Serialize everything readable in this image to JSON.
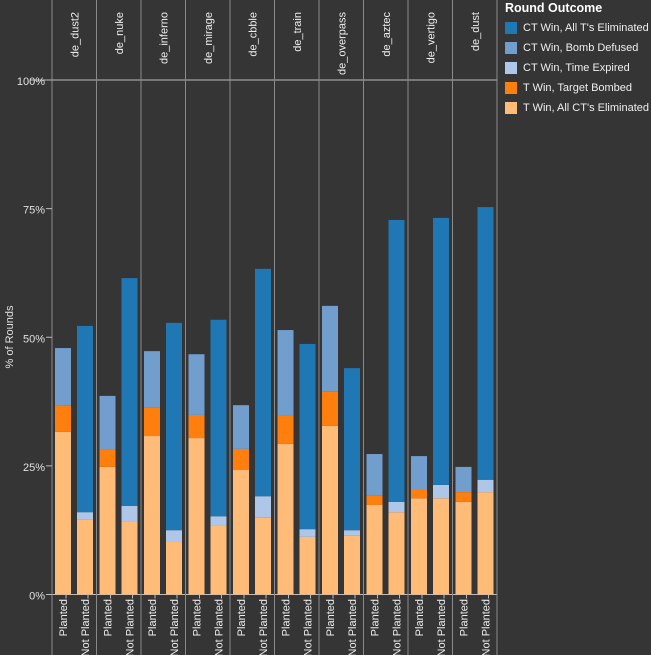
{
  "chart_data": {
    "type": "bar",
    "stacked": true,
    "ylabel": "% of Rounds",
    "ylim": [
      0,
      100
    ],
    "yticks": [
      "0%",
      "25%",
      "50%",
      "75%",
      "100%"
    ],
    "panels": [
      "de_dust2",
      "de_nuke",
      "de_inferno",
      "de_mirage",
      "de_cbble",
      "de_train",
      "de_overpass",
      "de_aztec",
      "de_vertigo",
      "de_dust"
    ],
    "subcategories": [
      "Planted",
      "Not Planted"
    ],
    "legend": {
      "title": "Round Outcome",
      "position": "right"
    },
    "series": [
      {
        "name": "CT Win, All T's Eliminated",
        "color": "#1f77b4",
        "values": [
          0,
          36.2,
          0,
          44.3,
          0,
          40.3,
          0,
          38.2,
          0,
          44.2,
          0,
          36.0,
          0,
          31.5,
          0,
          54.8,
          0,
          51.9,
          0,
          53.0
        ]
      },
      {
        "name": "CT Win, Bomb Defused",
        "color": "#729ece",
        "values": [
          11.2,
          0,
          10.5,
          0,
          10.9,
          0,
          11.8,
          0,
          8.5,
          0,
          16.7,
          0,
          16.7,
          0,
          8.0,
          0,
          6.4,
          0,
          4.9,
          0
        ]
      },
      {
        "name": "CT Win, Time Expired",
        "color": "#aec7e8",
        "values": [
          0,
          1.5,
          0,
          3.0,
          0,
          2.3,
          0,
          1.8,
          0,
          4.2,
          0,
          1.5,
          0,
          1.1,
          0,
          2.0,
          0,
          2.6,
          0,
          2.4
        ]
      },
      {
        "name": "T Win, Target Bombed",
        "color": "#ff7f0e",
        "values": [
          5.1,
          0,
          3.3,
          0,
          5.6,
          0,
          4.5,
          0,
          4.1,
          0,
          5.4,
          0,
          6.6,
          0,
          1.9,
          0,
          1.8,
          0,
          1.9,
          0
        ]
      },
      {
        "name": "T Win, All CT's Eliminated",
        "color": "#ffbb78",
        "values": [
          31.6,
          14.5,
          24.8,
          14.2,
          30.8,
          10.2,
          30.4,
          13.4,
          24.2,
          14.9,
          29.3,
          11.2,
          32.8,
          11.4,
          17.4,
          16.0,
          18.7,
          18.7,
          18.0,
          19.9
        ]
      }
    ]
  }
}
